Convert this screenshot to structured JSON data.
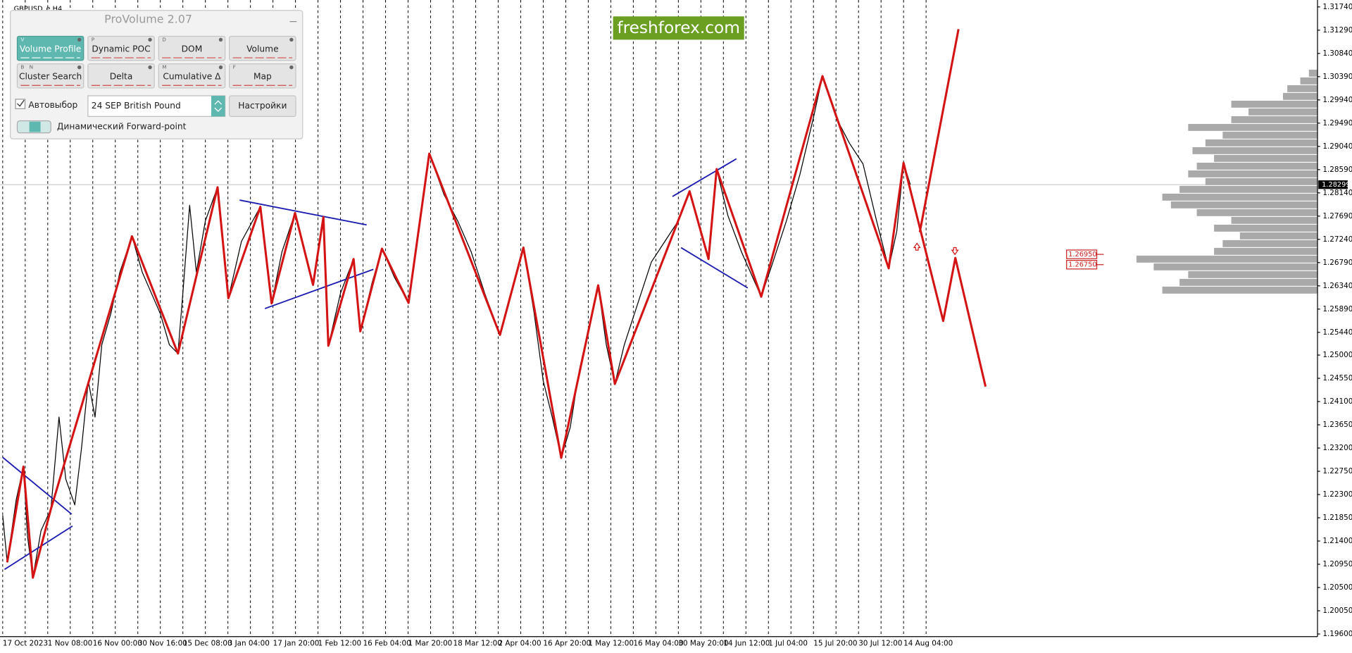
{
  "chart_data": [
    {
      "type": "line",
      "title": "GBPUSD_e,H4",
      "xlim": [
        -0.06,
        29.19
      ],
      "xticks": [
        {
          "value": 0,
          "label": "17 Oct 2023"
        },
        {
          "value": 1,
          "label": "1 Nov 08:00"
        },
        {
          "value": 2,
          "label": "16 Nov 00:00"
        },
        {
          "value": 3,
          "label": "30 Nov 16:00"
        },
        {
          "value": 4,
          "label": "15 Dec 08:00"
        },
        {
          "value": 5,
          "label": "3 Jan 04:00"
        },
        {
          "value": 6,
          "label": "17 Jan 20:00"
        },
        {
          "value": 7,
          "label": "1 Feb 12:00"
        },
        {
          "value": 8,
          "label": "16 Feb 04:00"
        },
        {
          "value": 9,
          "label": "1 Mar 20:00"
        },
        {
          "value": 10,
          "label": "18 Mar 12:00"
        },
        {
          "value": 11,
          "label": "2 Apr 04:00"
        },
        {
          "value": 12,
          "label": "16 Apr 20:00"
        },
        {
          "value": 13,
          "label": "1 May 12:00"
        },
        {
          "value": 14,
          "label": "16 May 04:00"
        },
        {
          "value": 15,
          "label": "30 May 20:00"
        },
        {
          "value": 16,
          "label": "14 Jun 12:00"
        },
        {
          "value": 17,
          "label": "1 Jul 04:00"
        },
        {
          "value": 18,
          "label": "15 Jul 20:00"
        },
        {
          "value": 19,
          "label": "30 Jul 12:00"
        },
        {
          "value": 20,
          "label": "14 Aug 04:00"
        }
      ],
      "ylim": [
        1.196,
        1.3174
      ],
      "yticks": [
        {
          "value": 1.3174,
          "label": "1.31740"
        },
        {
          "value": 1.3129,
          "label": "1.31290"
        },
        {
          "value": 1.3084,
          "label": "1.30840"
        },
        {
          "value": 1.3039,
          "label": "1.30390"
        },
        {
          "value": 1.2994,
          "label": "1.29940"
        },
        {
          "value": 1.2949,
          "label": "1.29490"
        },
        {
          "value": 1.2904,
          "label": "1.29040"
        },
        {
          "value": 1.2859,
          "label": "1.28590"
        },
        {
          "value": 1.2814,
          "label": "1.28140"
        },
        {
          "value": 1.2769,
          "label": "1.27690"
        },
        {
          "value": 1.2724,
          "label": "1.27240"
        },
        {
          "value": 1.2679,
          "label": "1.26790"
        },
        {
          "value": 1.2634,
          "label": "1.26340"
        },
        {
          "value": 1.2589,
          "label": "1.25890"
        },
        {
          "value": 1.2544,
          "label": "1.25440"
        },
        {
          "value": 1.25,
          "label": "1.25000"
        },
        {
          "value": 1.2455,
          "label": "1.24550"
        },
        {
          "value": 1.241,
          "label": "1.24100"
        },
        {
          "value": 1.2365,
          "label": "1.23650"
        },
        {
          "value": 1.232,
          "label": "1.23200"
        },
        {
          "value": 1.2275,
          "label": "1.22750"
        },
        {
          "value": 1.223,
          "label": "1.22300"
        },
        {
          "value": 1.2185,
          "label": "1.21850"
        },
        {
          "value": 1.214,
          "label": "1.21400"
        },
        {
          "value": 1.2095,
          "label": "1.20950"
        },
        {
          "value": 1.205,
          "label": "1.20500"
        },
        {
          "value": 1.2005,
          "label": "1.20050"
        },
        {
          "value": 1.196,
          "label": "1.19600"
        }
      ],
      "grid": true,
      "current_price": 1.28299,
      "levels": [
        {
          "value": 1.2695,
          "label": "1.26950"
        },
        {
          "value": 1.2675,
          "label": "1.26750"
        }
      ],
      "series": [
        {
          "color": "#000000",
          "width": 1,
          "x": [
            0,
            0.1,
            0.3,
            0.46,
            0.55,
            0.67,
            0.85,
            1.07,
            1.25,
            1.4,
            1.6,
            1.75,
            1.9,
            2.05,
            2.2,
            2.4,
            2.6,
            2.87,
            3.1,
            3.3,
            3.5,
            3.7,
            3.89,
            4.0,
            4.15,
            4.3,
            4.5,
            4.77,
            5.01,
            5.3,
            5.72,
            5.97,
            6.2,
            6.49,
            6.89,
            7.12,
            7.23,
            7.5,
            7.79,
            7.94,
            8.2,
            8.42,
            8.7,
            9.01,
            9.2,
            9.47,
            9.8,
            10.1,
            10.4,
            10.7,
            11.04,
            11.3,
            11.56,
            11.8,
            12.0,
            12.2,
            12.4,
            12.6,
            12.8,
            13.0,
            13.22,
            13.4,
            13.59,
            13.8,
            14.1,
            14.4,
            14.7,
            15.0,
            15.25,
            15.5,
            15.67,
            15.85,
            16.1,
            16.4,
            16.84,
            17.1,
            17.4,
            17.7,
            18.0,
            18.2,
            18.5,
            18.8,
            19.1,
            19.4,
            19.67,
            19.85,
            20.0,
            20.15
          ],
          "values": [
            1.219,
            1.2099,
            1.222,
            1.2284,
            1.215,
            1.2069,
            1.216,
            1.2202,
            1.238,
            1.226,
            1.221,
            1.232,
            1.245,
            1.238,
            1.252,
            1.258,
            1.266,
            1.273,
            1.266,
            1.262,
            1.258,
            1.252,
            1.2503,
            1.262,
            1.279,
            1.266,
            1.276,
            1.2825,
            1.261,
            1.272,
            1.2787,
            1.26,
            1.27,
            1.2775,
            1.2636,
            1.2767,
            1.2518,
            1.262,
            1.2686,
            1.2546,
            1.264,
            1.2706,
            1.265,
            1.2601,
            1.272,
            1.289,
            1.281,
            1.276,
            1.27,
            1.262,
            1.2539,
            1.262,
            1.2708,
            1.258,
            1.245,
            1.238,
            1.2301,
            1.236,
            1.247,
            1.255,
            1.2635,
            1.252,
            1.2444,
            1.252,
            1.26,
            1.268,
            1.272,
            1.276,
            1.2817,
            1.274,
            1.2686,
            1.286,
            1.277,
            1.27,
            1.2613,
            1.268,
            1.276,
            1.285,
            1.296,
            1.304,
            1.296,
            1.291,
            1.287,
            1.276,
            1.2668,
            1.274,
            1.2872,
            1.283
          ]
        },
        {
          "color": "#1c1cb0",
          "width": 1.5,
          "x": [
            0,
            1.53
          ],
          "values": [
            1.2302,
            1.2192
          ]
        },
        {
          "color": "#1c1cb0",
          "width": 1.5,
          "x": [
            0.04,
            1.55
          ],
          "values": [
            1.2085,
            1.2169
          ]
        },
        {
          "color": "#1c1cb0",
          "width": 1.5,
          "x": [
            5.26,
            8.08
          ],
          "values": [
            1.28,
            1.2752
          ]
        },
        {
          "color": "#1c1cb0",
          "width": 1.5,
          "x": [
            5.82,
            8.23
          ],
          "values": [
            1.259,
            1.2666
          ]
        },
        {
          "color": "#1c1cb0",
          "width": 1.5,
          "x": [
            14.87,
            16.29
          ],
          "values": [
            1.2807,
            1.288
          ]
        },
        {
          "color": "#1c1cb0",
          "width": 1.5,
          "x": [
            15.06,
            16.54
          ],
          "values": [
            1.2708,
            1.263
          ]
        },
        {
          "color": "#d41414",
          "width": 2.5,
          "x": [
            0.1,
            0.46,
            0.67,
            1.07,
            2.87,
            3.89,
            4.77,
            5.01,
            5.72,
            5.97,
            6.49,
            6.89,
            7.12,
            7.23,
            7.79,
            7.94,
            8.42,
            9.01,
            9.47,
            11.04,
            11.56,
            12.4,
            13.22,
            13.59,
            15.25,
            15.67,
            15.85,
            16.84,
            18.2,
            19.67,
            20.0,
            20.88,
            21.15,
            21.82
          ],
          "values": [
            1.2099,
            1.2284,
            1.2069,
            1.2202,
            1.273,
            1.2503,
            1.2825,
            1.261,
            1.2787,
            1.26,
            1.2775,
            1.2636,
            1.2767,
            1.2518,
            1.2686,
            1.2546,
            1.2706,
            1.2601,
            1.289,
            1.2539,
            1.2708,
            1.2301,
            1.2635,
            1.2444,
            1.2817,
            1.2686,
            1.286,
            1.2613,
            1.304,
            1.2668,
            1.2872,
            1.2566,
            1.2688,
            1.2439
          ]
        },
        {
          "color": "#d41414",
          "width": 2.5,
          "x": [
            20.36,
            21.22
          ],
          "values": [
            1.2738,
            1.3131
          ]
        }
      ]
    },
    {
      "type": "barh",
      "color": "#a9a9a9",
      "xlim": [
        0,
        250
      ],
      "categories": [
        1.2625,
        1.264,
        1.2655,
        1.267,
        1.2685,
        1.27,
        1.2715,
        1.273,
        1.2745,
        1.276,
        1.2775,
        1.279,
        1.2805,
        1.282,
        1.2835,
        1.285,
        1.2865,
        1.288,
        1.2895,
        1.291,
        1.2925,
        1.294,
        1.2955,
        1.297,
        1.2985,
        1.3,
        1.3015,
        1.303,
        1.3045
      ],
      "values": [
        180,
        160,
        150,
        190,
        210,
        120,
        110,
        90,
        120,
        100,
        140,
        170,
        180,
        160,
        130,
        150,
        140,
        120,
        145,
        130,
        110,
        150,
        100,
        80,
        100,
        40,
        35,
        20,
        10
      ]
    }
  ],
  "panel": {
    "title": "ProVolume 2.07",
    "buttons": [
      {
        "keys": [
          "V"
        ],
        "label": "Volume Profile"
      },
      {
        "keys": [
          "P"
        ],
        "label": "Dynamic POC"
      },
      {
        "keys": [
          "D"
        ],
        "label": "DOM"
      },
      {
        "keys": [],
        "label": "Volume"
      },
      {
        "keys": [
          "B",
          "N"
        ],
        "label": "Cluster Search"
      },
      {
        "keys": [],
        "label": "Delta"
      },
      {
        "keys": [
          "M"
        ],
        "label": "Cumulative Δ"
      },
      {
        "keys": [
          "F"
        ],
        "label": "Map"
      }
    ],
    "auto_select": "Автовыбор",
    "instrument": "24 SEP British Pound",
    "settings": "Настройки",
    "toggle": "Динамический Forward-point"
  },
  "watermark": "freshforex.com"
}
